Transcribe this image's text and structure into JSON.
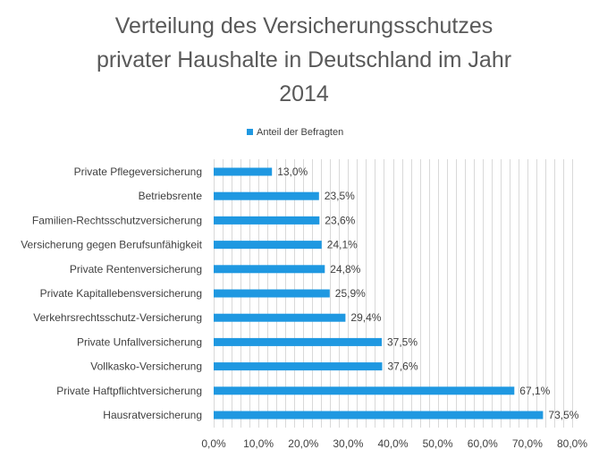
{
  "chart_data": {
    "type": "bar",
    "orientation": "horizontal",
    "title_lines": [
      "Verteilung des Versicherungsschutzes",
      "privater Haushalte in Deutschland im Jahr",
      "2014"
    ],
    "legend": {
      "label": "Anteil der Befragten",
      "position": "top"
    },
    "categories": [
      "Private Pflegeversicherung",
      "Betriebsrente",
      "Familien-Rechtsschutzversicherung",
      "Versicherung gegen Berufsunfähigkeit",
      "Private Rentenversicherung",
      "Private Kapitallebensversicherung",
      "Verkehrsrechtsschutz-Versicherung",
      "Private Unfallversicherung",
      "Vollkasko-Versicherung",
      "Private Haftpflichtversicherung",
      "Hausratversicherung"
    ],
    "values": [
      13.0,
      23.5,
      23.6,
      24.1,
      24.8,
      25.9,
      29.4,
      37.5,
      37.6,
      67.1,
      73.5
    ],
    "value_labels": [
      "13,0%",
      "23,5%",
      "23,6%",
      "24,1%",
      "24,8%",
      "25,9%",
      "29,4%",
      "37,5%",
      "37,6%",
      "67,1%",
      "73,5%"
    ],
    "x_ticks": [
      0,
      10,
      20,
      30,
      40,
      50,
      60,
      70,
      80
    ],
    "x_tick_labels": [
      "0,0%",
      "10,0%",
      "20,0%",
      "30,0%",
      "40,0%",
      "50,0%",
      "60,0%",
      "70,0%",
      "80,0%"
    ],
    "xlim": [
      0,
      80
    ],
    "minor_grid_step": 2,
    "grid": true,
    "bar_color": "#1F98E1",
    "grid_color": "#D9D9D9"
  }
}
